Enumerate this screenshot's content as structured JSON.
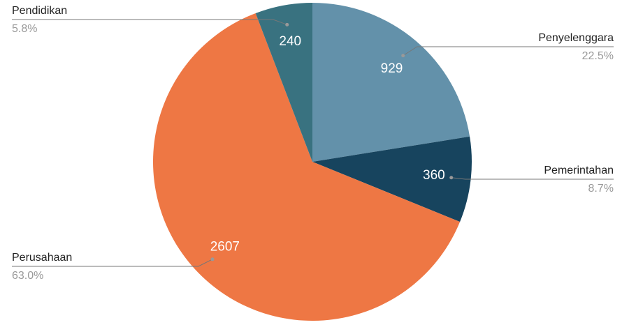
{
  "chart_data": {
    "type": "pie",
    "categories": [
      "Penyelenggara",
      "Pemerintahan",
      "Perusahaan",
      "Pendidikan"
    ],
    "values": [
      929,
      360,
      2607,
      240
    ],
    "percent_labels": [
      "22.5%",
      "8.7%",
      "63.0%",
      "5.8%"
    ],
    "colors": [
      "#6391aa",
      "#17445e",
      "#ee7744",
      "#397280"
    ]
  }
}
